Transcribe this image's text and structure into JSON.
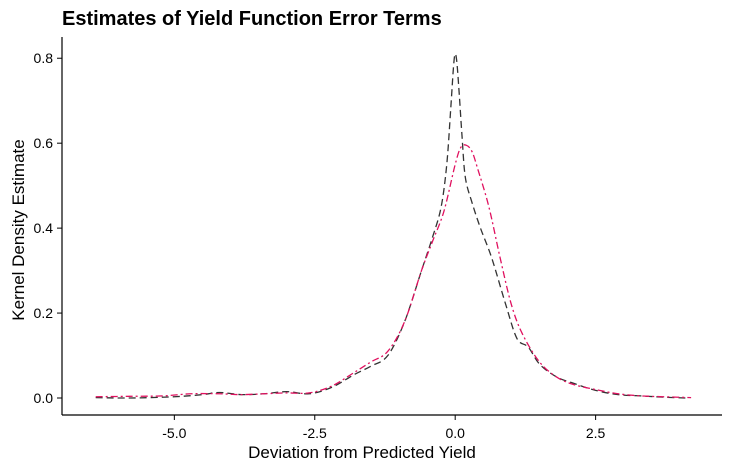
{
  "chart_data": {
    "type": "line",
    "title": "Estimates of Yield Function Error Terms",
    "xlabel": "Deviation from Predicted Yield",
    "ylabel": "Kernel Density Estimate",
    "xlim": [
      -7.0,
      4.75
    ],
    "ylim": [
      -0.04,
      0.85
    ],
    "xticks": [
      -5.0,
      -2.5,
      0.0,
      2.5
    ],
    "xtick_labels": [
      "-5.0",
      "-2.5",
      "0.0",
      "2.5"
    ],
    "yticks": [
      0.0,
      0.2,
      0.4,
      0.6,
      0.8
    ],
    "ytick_labels": [
      "0.0",
      "0.2",
      "0.4",
      "0.6",
      "0.8"
    ],
    "grid": false,
    "legend": "none",
    "series": [
      {
        "color": "#333333",
        "dash": "dashed",
        "x": [
          -6.4,
          -5.8,
          -5.0,
          -4.5,
          -4.2,
          -3.8,
          -3.4,
          -3.0,
          -2.6,
          -2.2,
          -1.8,
          -1.5,
          -1.2,
          -0.9,
          -0.6,
          -0.4,
          -0.25,
          -0.15,
          -0.08,
          -0.03,
          0.0,
          0.03,
          0.07,
          0.12,
          0.18,
          0.3,
          0.45,
          0.65,
          0.9,
          1.1,
          1.3,
          1.5,
          1.8,
          2.1,
          2.5,
          2.9,
          3.3,
          3.7,
          4.1
        ],
        "y": [
          0.001,
          0.0,
          0.003,
          0.008,
          0.013,
          0.008,
          0.01,
          0.015,
          0.01,
          0.025,
          0.055,
          0.075,
          0.1,
          0.18,
          0.3,
          0.38,
          0.45,
          0.55,
          0.68,
          0.78,
          0.81,
          0.79,
          0.72,
          0.62,
          0.52,
          0.46,
          0.4,
          0.33,
          0.22,
          0.14,
          0.12,
          0.08,
          0.05,
          0.035,
          0.018,
          0.008,
          0.005,
          0.002,
          0.0
        ]
      },
      {
        "color": "#e0115f",
        "dash": "dashdot",
        "x": [
          -6.4,
          -5.8,
          -5.2,
          -4.7,
          -4.2,
          -3.8,
          -3.4,
          -3.0,
          -2.6,
          -2.2,
          -1.8,
          -1.5,
          -1.2,
          -0.9,
          -0.6,
          -0.4,
          -0.2,
          0.0,
          0.1,
          0.2,
          0.3,
          0.4,
          0.6,
          0.8,
          1.0,
          1.2,
          1.5,
          1.8,
          2.1,
          2.5,
          2.9,
          3.3,
          3.7,
          4.2
        ],
        "y": [
          0.003,
          0.004,
          0.005,
          0.01,
          0.01,
          0.008,
          0.01,
          0.012,
          0.012,
          0.028,
          0.06,
          0.085,
          0.11,
          0.18,
          0.3,
          0.37,
          0.44,
          0.55,
          0.59,
          0.595,
          0.58,
          0.54,
          0.45,
          0.33,
          0.22,
          0.15,
          0.085,
          0.05,
          0.032,
          0.02,
          0.01,
          0.005,
          0.003,
          0.001
        ]
      }
    ]
  }
}
